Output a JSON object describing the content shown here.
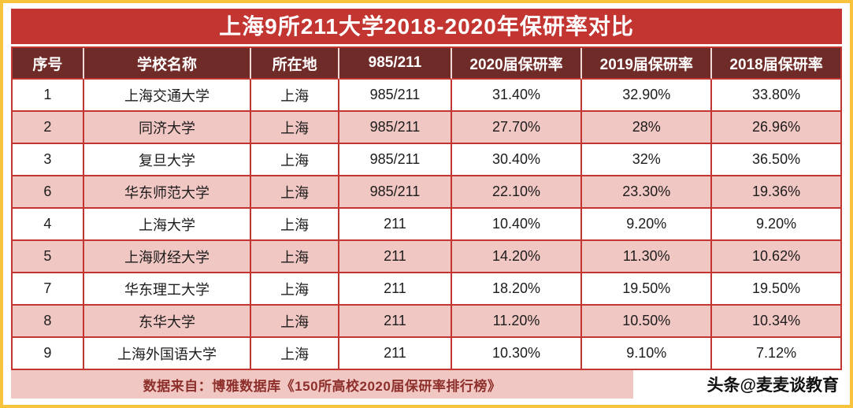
{
  "page": {
    "title": "上海9所211大学2018-2020年保研率对比",
    "footer_source": "数据来自：博雅数据库《150所高校2020届保研率排行榜》",
    "watermark": "头条@麦麦谈教育"
  },
  "chart_data": {
    "type": "table",
    "title": "上海9所211大学2018-2020年保研率对比",
    "columns": [
      "序号",
      "学校名称",
      "所在地",
      "985/211",
      "2020届保研率",
      "2019届保研率",
      "2018届保研率"
    ],
    "rows": [
      [
        "1",
        "上海交通大学",
        "上海",
        "985/211",
        "31.40%",
        "32.90%",
        "33.80%"
      ],
      [
        "2",
        "同济大学",
        "上海",
        "985/211",
        "27.70%",
        "28%",
        "26.96%"
      ],
      [
        "3",
        "复旦大学",
        "上海",
        "985/211",
        "30.40%",
        "32%",
        "36.50%"
      ],
      [
        "6",
        "华东师范大学",
        "上海",
        "985/211",
        "22.10%",
        "23.30%",
        "19.36%"
      ],
      [
        "4",
        "上海大学",
        "上海",
        "211",
        "10.40%",
        "9.20%",
        "9.20%"
      ],
      [
        "5",
        "上海财经大学",
        "上海",
        "211",
        "14.20%",
        "11.30%",
        "10.62%"
      ],
      [
        "7",
        "华东理工大学",
        "上海",
        "211",
        "18.20%",
        "19.50%",
        "19.50%"
      ],
      [
        "8",
        "东华大学",
        "上海",
        "211",
        "11.20%",
        "10.50%",
        "10.34%"
      ],
      [
        "9",
        "上海外国语大学",
        "上海",
        "211",
        "10.30%",
        "9.10%",
        "7.12%"
      ]
    ],
    "source": "数据来自：博雅数据库《150所高校2020届保研率排行榜》"
  },
  "colors": {
    "frame_border": "#f7c23c",
    "title_bg": "#c23531",
    "header_bg": "#6e2b27",
    "row_alt_bg": "#f1c7c3",
    "grid_border": "#c23531",
    "footer_bg": "#f1c7c3",
    "footer_text": "#8d2f2b",
    "watermark_text": "#111111"
  }
}
